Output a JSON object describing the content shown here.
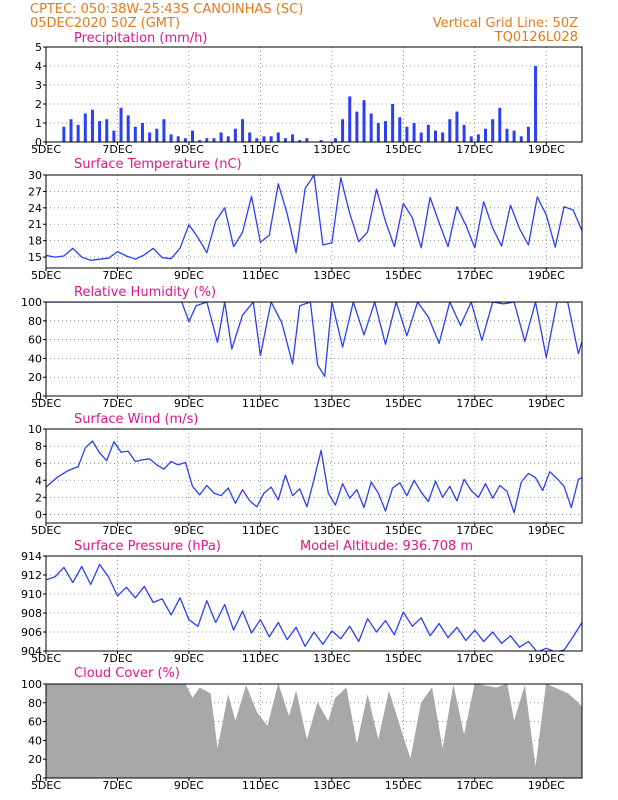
{
  "header": {
    "line1": "CPTEC:   050:38W-25:43S   CANOINHAS (SC)",
    "line2": "05DEC2020 50Z (GMT)",
    "grid_note": "Vertical Grid Line: 50Z",
    "code": "TQ0126L028"
  },
  "colors": {
    "series": "#2b3ff5",
    "header": "#e07a1f",
    "panel_title": "#e0158a",
    "cloud": "#a8a8a8",
    "grid": "#777777"
  },
  "chart_data": [
    {
      "type": "bar",
      "title": "Precipitation (mm/h)",
      "ylim": [
        0,
        5
      ],
      "yticks": [
        0,
        1,
        2,
        3,
        4,
        5
      ],
      "xlim": [
        5,
        20
      ],
      "xticks": [
        "5DEC",
        "7DEC",
        "9DEC",
        "11DEC",
        "13DEC",
        "15DEC",
        "17DEC",
        "19DEC"
      ],
      "x_days": [
        5.5,
        5.7,
        5.9,
        6.1,
        6.3,
        6.5,
        6.7,
        6.9,
        7.1,
        7.3,
        7.5,
        7.7,
        7.9,
        8.1,
        8.3,
        8.5,
        8.7,
        8.9,
        9.1,
        9.3,
        9.5,
        9.7,
        9.9,
        10.1,
        10.3,
        10.5,
        10.7,
        10.9,
        11.1,
        11.3,
        11.5,
        11.7,
        11.9,
        12.1,
        12.3,
        12.5,
        12.7,
        12.9,
        13.1,
        13.3,
        13.5,
        13.7,
        13.9,
        14.1,
        14.3,
        14.5,
        14.7,
        14.9,
        15.1,
        15.3,
        15.5,
        15.7,
        15.9,
        16.1,
        16.3,
        16.5,
        16.7,
        16.9,
        17.1,
        17.3,
        17.5,
        17.7,
        17.9,
        18.1,
        18.3,
        18.5,
        18.7
      ],
      "values": [
        0.8,
        1.2,
        0.9,
        1.5,
        1.7,
        1.1,
        1.2,
        0.6,
        1.8,
        1.4,
        0.8,
        1.0,
        0.5,
        0.7,
        1.2,
        0.4,
        0.3,
        0.2,
        0.6,
        0.1,
        0.2,
        0.2,
        0.5,
        0.3,
        0.7,
        1.2,
        0.5,
        0.2,
        0.3,
        0.3,
        0.5,
        0.2,
        0.4,
        0.1,
        0.2,
        0.0,
        0.1,
        0.0,
        0.2,
        1.2,
        2.4,
        1.6,
        2.2,
        1.5,
        1.0,
        1.1,
        2.0,
        1.3,
        0.8,
        1.0,
        0.5,
        0.9,
        0.6,
        0.5,
        1.2,
        1.6,
        0.9,
        0.3,
        0.4,
        0.7,
        1.2,
        1.8,
        0.7,
        0.6,
        0.3,
        0.8,
        4.0
      ]
    },
    {
      "type": "line",
      "title": "Surface Temperature (nC)",
      "ylim": [
        13,
        30
      ],
      "yticks": [
        15,
        18,
        21,
        24,
        27,
        30
      ],
      "xlim": [
        5,
        20
      ],
      "xticks": [
        "5DEC",
        "7DEC",
        "9DEC",
        "11DEC",
        "13DEC",
        "15DEC",
        "17DEC",
        "19DEC"
      ],
      "x": [
        5.0,
        5.25,
        5.5,
        5.75,
        6.0,
        6.25,
        6.5,
        6.75,
        7.0,
        7.25,
        7.5,
        7.75,
        8.0,
        8.25,
        8.5,
        8.75,
        9.0,
        9.25,
        9.5,
        9.75,
        10.0,
        10.25,
        10.5,
        10.75,
        11.0,
        11.25,
        11.5,
        11.75,
        12.0,
        12.25,
        12.5,
        12.75,
        13.0,
        13.25,
        13.5,
        13.75,
        14.0,
        14.25,
        14.5,
        14.75,
        15.0,
        15.25,
        15.5,
        15.75,
        16.0,
        16.25,
        16.5,
        16.75,
        17.0,
        17.25,
        17.5,
        17.75,
        18.0,
        18.25,
        18.5,
        18.75,
        19.0,
        19.25,
        19.5,
        19.75,
        20.0
      ],
      "values": [
        15.3,
        15.0,
        15.2,
        16.6,
        15.0,
        14.4,
        14.6,
        14.8,
        16.0,
        15.2,
        14.6,
        15.4,
        16.6,
        14.9,
        14.7,
        16.6,
        20.9,
        18.6,
        15.8,
        21.6,
        24.0,
        16.9,
        19.5,
        26.1,
        17.7,
        19.0,
        28.4,
        22.9,
        15.8,
        27.5,
        30.0,
        17.2,
        17.6,
        29.5,
        23.0,
        17.8,
        19.6,
        27.4,
        21.5,
        16.9,
        24.8,
        22.2,
        16.7,
        25.9,
        21.3,
        16.9,
        24.2,
        20.8,
        16.7,
        25.1,
        20.3,
        17.0,
        24.5,
        20.2,
        17.2,
        26.0,
        22.7,
        16.8,
        24.2,
        23.6,
        19.8
      ]
    },
    {
      "type": "line",
      "title": "Relative Humidity (%)",
      "ylim": [
        0,
        100
      ],
      "yticks": [
        0,
        20,
        40,
        60,
        80,
        100
      ],
      "xlim": [
        5,
        20
      ],
      "xticks": [
        "5DEC",
        "7DEC",
        "9DEC",
        "11DEC",
        "13DEC",
        "15DEC",
        "17DEC",
        "19DEC"
      ],
      "x": [
        5.0,
        8.8,
        9.0,
        9.2,
        9.5,
        9.8,
        10.0,
        10.2,
        10.5,
        10.8,
        11.0,
        11.3,
        11.6,
        11.9,
        12.1,
        12.4,
        12.6,
        12.8,
        13.0,
        13.3,
        13.6,
        13.9,
        14.2,
        14.5,
        14.8,
        15.1,
        15.4,
        15.7,
        16.0,
        16.3,
        16.6,
        16.9,
        17.2,
        17.5,
        17.8,
        18.1,
        18.4,
        18.7,
        19.0,
        19.3,
        19.6,
        19.9,
        20.0
      ],
      "values": [
        100,
        100,
        79,
        96,
        100,
        57,
        100,
        50,
        86,
        100,
        43,
        100,
        78,
        34,
        96,
        100,
        33,
        21,
        100,
        52,
        100,
        65,
        100,
        55,
        100,
        64,
        100,
        84,
        56,
        100,
        75,
        100,
        59,
        100,
        98,
        100,
        58,
        100,
        41,
        100,
        100,
        45,
        58
      ]
    },
    {
      "type": "line",
      "title": "Surface Wind (m/s)",
      "ylim": [
        -1,
        10
      ],
      "yticks": [
        0,
        2,
        4,
        6,
        8,
        10
      ],
      "xlim": [
        5,
        20
      ],
      "xticks": [
        "5DEC",
        "7DEC",
        "9DEC",
        "11DEC",
        "13DEC",
        "15DEC",
        "17DEC",
        "19DEC"
      ],
      "x": [
        5.0,
        5.3,
        5.6,
        5.9,
        6.1,
        6.3,
        6.5,
        6.7,
        6.9,
        7.1,
        7.3,
        7.5,
        7.7,
        7.9,
        8.1,
        8.3,
        8.5,
        8.7,
        8.9,
        9.1,
        9.3,
        9.5,
        9.7,
        9.9,
        10.1,
        10.3,
        10.5,
        10.7,
        10.9,
        11.1,
        11.3,
        11.5,
        11.7,
        11.9,
        12.1,
        12.3,
        12.5,
        12.7,
        12.9,
        13.1,
        13.3,
        13.5,
        13.7,
        13.9,
        14.1,
        14.3,
        14.5,
        14.7,
        14.9,
        15.1,
        15.3,
        15.5,
        15.7,
        15.9,
        16.1,
        16.3,
        16.5,
        16.7,
        16.9,
        17.1,
        17.3,
        17.5,
        17.7,
        17.9,
        18.1,
        18.3,
        18.5,
        18.7,
        18.9,
        19.1,
        19.3,
        19.5,
        19.7,
        19.9,
        20.0
      ],
      "values": [
        3.2,
        4.3,
        5.1,
        5.6,
        7.8,
        8.6,
        7.2,
        6.3,
        8.5,
        7.3,
        7.4,
        6.2,
        6.4,
        6.5,
        5.8,
        5.3,
        6.2,
        5.8,
        6.1,
        3.3,
        2.3,
        3.4,
        2.5,
        2.2,
        3.1,
        1.3,
        2.9,
        1.6,
        0.9,
        2.5,
        3.2,
        1.7,
        4.6,
        2.2,
        3.0,
        0.9,
        4.1,
        7.5,
        2.5,
        1.1,
        3.6,
        1.9,
        2.9,
        0.8,
        3.8,
        2.5,
        0.4,
        3.1,
        3.7,
        2.2,
        4.0,
        2.6,
        1.5,
        3.9,
        2.0,
        3.3,
        1.6,
        4.1,
        2.8,
        2.0,
        3.6,
        1.9,
        3.4,
        2.7,
        0.2,
        3.8,
        4.8,
        4.3,
        2.8,
        5.0,
        4.2,
        3.3,
        0.8,
        4.1,
        4.3
      ]
    },
    {
      "type": "line",
      "title": "Surface Pressure (hPa)",
      "annotation": "Model Altitude: 936.708 m",
      "ylim": [
        904,
        914
      ],
      "yticks": [
        904,
        906,
        908,
        910,
        912,
        914
      ],
      "xlim": [
        5,
        20
      ],
      "xticks": [
        "5DEC",
        "7DEC",
        "9DEC",
        "11DEC",
        "13DEC",
        "15DEC",
        "17DEC",
        "19DEC"
      ],
      "x": [
        5.0,
        5.25,
        5.5,
        5.75,
        6.0,
        6.25,
        6.5,
        6.75,
        7.0,
        7.25,
        7.5,
        7.75,
        8.0,
        8.25,
        8.5,
        8.75,
        9.0,
        9.25,
        9.5,
        9.75,
        10.0,
        10.25,
        10.5,
        10.75,
        11.0,
        11.25,
        11.5,
        11.75,
        12.0,
        12.25,
        12.5,
        12.75,
        13.0,
        13.25,
        13.5,
        13.75,
        14.0,
        14.25,
        14.5,
        14.75,
        15.0,
        15.25,
        15.5,
        15.75,
        16.0,
        16.25,
        16.5,
        16.75,
        17.0,
        17.25,
        17.5,
        17.75,
        18.0,
        18.25,
        18.5,
        18.75,
        19.0,
        19.25,
        19.5,
        19.75,
        20.0
      ],
      "values": [
        911.5,
        911.8,
        912.8,
        911.2,
        912.9,
        911.0,
        913.1,
        911.8,
        909.8,
        910.7,
        909.6,
        910.8,
        909.1,
        909.5,
        907.8,
        909.6,
        907.3,
        906.6,
        909.3,
        907.0,
        908.9,
        906.2,
        908.2,
        905.9,
        907.3,
        905.5,
        907.0,
        905.2,
        906.5,
        904.5,
        906.0,
        904.7,
        906.1,
        905.3,
        906.6,
        905.0,
        907.4,
        906.0,
        907.2,
        905.7,
        908.1,
        906.6,
        907.5,
        905.6,
        906.9,
        905.4,
        906.5,
        905.1,
        906.2,
        905.0,
        906.0,
        904.8,
        905.6,
        904.4,
        905.0,
        903.9,
        904.3,
        903.9,
        904.1,
        905.5,
        907.0
      ]
    },
    {
      "type": "area",
      "title": "Cloud Cover (%)",
      "ylim": [
        0,
        100
      ],
      "yticks": [
        0,
        20,
        40,
        60,
        80,
        100
      ],
      "xlim": [
        5,
        20
      ],
      "xticks": [
        "5DEC",
        "7DEC",
        "9DEC",
        "11DEC",
        "13DEC",
        "15DEC",
        "17DEC",
        "19DEC"
      ],
      "x": [
        5.0,
        8.9,
        9.1,
        9.3,
        9.6,
        9.8,
        10.1,
        10.3,
        10.6,
        10.9,
        11.2,
        11.5,
        11.8,
        12.0,
        12.3,
        12.6,
        12.9,
        13.1,
        13.4,
        13.7,
        14.0,
        14.3,
        14.6,
        14.9,
        15.2,
        15.5,
        15.8,
        16.1,
        16.4,
        16.7,
        17.0,
        17.3,
        17.6,
        17.9,
        18.1,
        18.4,
        18.7,
        19.0,
        19.3,
        19.6,
        19.9,
        20.0
      ],
      "values": [
        100,
        100,
        85,
        96,
        90,
        30,
        88,
        60,
        98,
        70,
        55,
        100,
        65,
        92,
        40,
        80,
        60,
        85,
        96,
        35,
        88,
        40,
        92,
        55,
        20,
        80,
        96,
        30,
        98,
        45,
        100,
        98,
        96,
        100,
        60,
        98,
        10,
        100,
        95,
        90,
        80,
        75
      ]
    }
  ]
}
